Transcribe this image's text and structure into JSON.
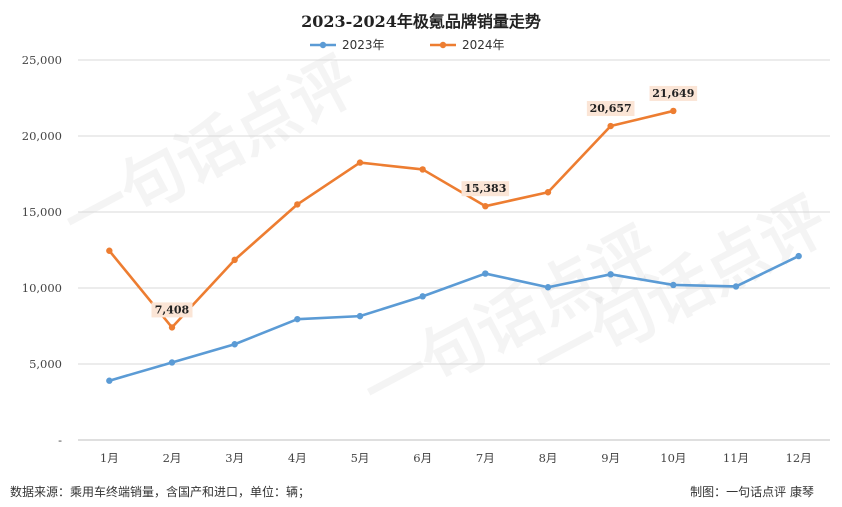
{
  "chart_data": {
    "type": "line",
    "title": "2023-2024年极氪品牌销量走势",
    "categories": [
      "1月",
      "2月",
      "3月",
      "4月",
      "5月",
      "6月",
      "7月",
      "8月",
      "9月",
      "10月",
      "11月",
      "12月"
    ],
    "y_ticks": [
      "-",
      "5,000",
      "10,000",
      "15,000",
      "20,000",
      "25,000"
    ],
    "ylim": [
      0,
      25000
    ],
    "grid": true,
    "legend_position": "top",
    "series": [
      {
        "name": "2023年",
        "color": "#5b9bd5",
        "values": [
          3900,
          5100,
          6300,
          7950,
          8150,
          9450,
          10950,
          10050,
          10900,
          10200,
          10100,
          12100
        ]
      },
      {
        "name": "2024年",
        "color": "#ed7d31",
        "values": [
          12450,
          7408,
          11850,
          15500,
          18250,
          17800,
          15383,
          16300,
          20657,
          21649,
          null,
          null
        ],
        "labels": [
          {
            "index": 1,
            "text": "7,408"
          },
          {
            "index": 6,
            "text": "15,383"
          },
          {
            "index": 8,
            "text": "20,657"
          },
          {
            "index": 9,
            "text": "21,649"
          }
        ]
      }
    ]
  },
  "footer": {
    "source": "数据来源：乘用车终端销量，含国产和进口，单位：辆；",
    "credit": "制图：一句话点评  康琴"
  },
  "watermark": "一句话点评"
}
